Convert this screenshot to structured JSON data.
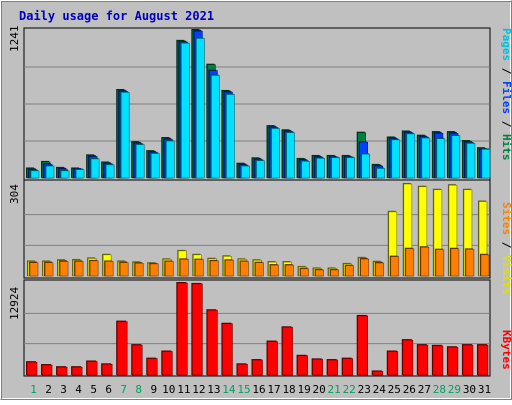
{
  "chart_data": [
    {
      "type": "bar",
      "title": "Daily usage for August 2021",
      "panel": "hits-files-pages",
      "categories": [
        "1",
        "2",
        "3",
        "4",
        "5",
        "6",
        "7",
        "8",
        "9",
        "10",
        "11",
        "12",
        "13",
        "14",
        "15",
        "16",
        "17",
        "18",
        "19",
        "20",
        "21",
        "22",
        "23",
        "24",
        "25",
        "26",
        "27",
        "28",
        "29",
        "30",
        "31"
      ],
      "weekend_days": [
        "1",
        "7",
        "8",
        "14",
        "15",
        "21",
        "22",
        "28",
        "29"
      ],
      "ylabel_max": "1241",
      "ylim": [
        0,
        1241
      ],
      "series": [
        {
          "name": "Hits",
          "color": "#008040",
          "values": [
            80,
            135,
            85,
            80,
            190,
            130,
            738,
            300,
            225,
            335,
            1150,
            1241,
            950,
            730,
            120,
            165,
            435,
            400,
            160,
            185,
            185,
            185,
            380,
            110,
            340,
            390,
            355,
            385,
            385,
            310,
            250
          ]
        },
        {
          "name": "Files",
          "color": "#0040ff",
          "values": [
            70,
            115,
            75,
            75,
            180,
            120,
            728,
            290,
            215,
            325,
            1140,
            1231,
            900,
            720,
            110,
            155,
            425,
            390,
            150,
            175,
            175,
            175,
            300,
            100,
            330,
            380,
            345,
            375,
            375,
            300,
            240
          ]
        },
        {
          "name": "Pages",
          "color": "#00e0ff",
          "values": [
            60,
            100,
            60,
            70,
            160,
            110,
            718,
            280,
            205,
            310,
            1130,
            1170,
            860,
            700,
            100,
            145,
            415,
            380,
            140,
            165,
            170,
            170,
            200,
            80,
            320,
            370,
            335,
            330,
            355,
            290,
            240
          ]
        }
      ],
      "legend": "right-vertical"
    },
    {
      "type": "bar",
      "panel": "sites-visits",
      "ylabel_max": "304",
      "ylim": [
        0,
        304
      ],
      "series": [
        {
          "name": "Visits",
          "color": "#ffff00",
          "values": [
            48,
            48,
            52,
            53,
            58,
            70,
            48,
            45,
            42,
            55,
            83,
            70,
            57,
            65,
            55,
            52,
            46,
            46,
            30,
            25,
            25,
            40,
            60,
            47,
            212,
            304,
            295,
            285,
            300,
            285,
            246
          ]
        },
        {
          "name": "Sites",
          "color": "#ff8000",
          "values": [
            44,
            44,
            48,
            48,
            50,
            48,
            44,
            42,
            40,
            48,
            55,
            54,
            50,
            52,
            48,
            44,
            36,
            36,
            24,
            20,
            20,
            34,
            56,
            43,
            64,
            90,
            95,
            87,
            90,
            88,
            70
          ]
        }
      ],
      "legend": "right-vertical"
    },
    {
      "type": "bar",
      "panel": "kbytes",
      "ylabel_max": "12924",
      "ylim": [
        0,
        12924
      ],
      "series": [
        {
          "name": "KBytes",
          "color": "#ff0000",
          "values": [
            1800,
            1400,
            1100,
            1100,
            1900,
            1500,
            7500,
            4200,
            2300,
            3300,
            12924,
            12800,
            9100,
            7200,
            1500,
            2100,
            4700,
            6700,
            2700,
            2200,
            2100,
            2300,
            8300,
            500,
            3300,
            4900,
            4200,
            4100,
            3900,
            4200,
            4200
          ]
        }
      ],
      "legend": "right-vertical"
    }
  ]
}
